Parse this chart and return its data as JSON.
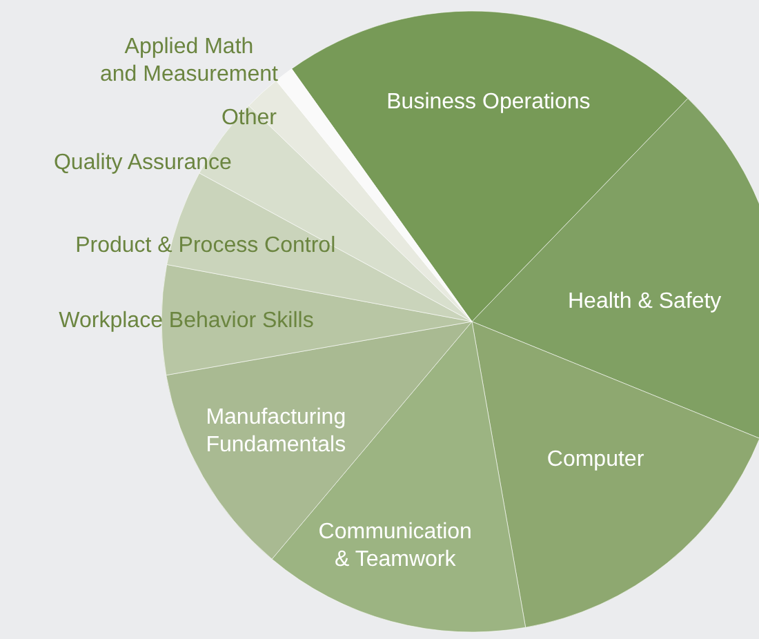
{
  "chart_data": {
    "type": "pie",
    "categories": [
      "Business Operations",
      "Health & Safety",
      "Computer",
      "Communication\n& Teamwork",
      "Manufacturing\nFundamentals",
      "Workplace Behavior Skills",
      "Product & Process Control",
      "Quality Assurance",
      "Other",
      "Applied Math\nand Measurement"
    ],
    "values": [
      22.1,
      18.9,
      16.1,
      13.9,
      11.1,
      5.7,
      5.0,
      4.3,
      1.9,
      1.0
    ],
    "colors": [
      "#779a57",
      "#80a063",
      "#8ea870",
      "#9cb482",
      "#a9ba92",
      "#b8c6a4",
      "#cad4bb",
      "#d8dfcd",
      "#e8eae0",
      "#fafafa"
    ]
  }
}
